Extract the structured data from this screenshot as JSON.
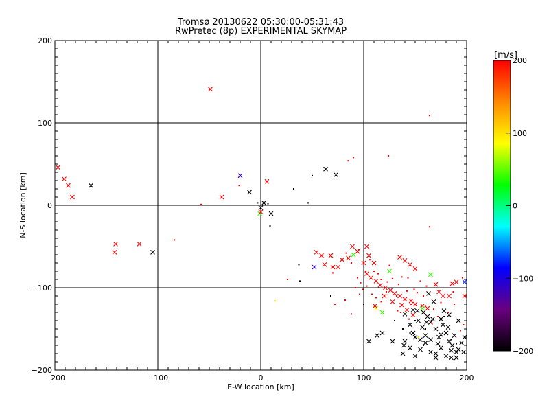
{
  "chart_data": {
    "type": "scatter",
    "title": "Tromsø 20130622 05:30:00-05:31:43",
    "subtitle": "RwPretec (8p) EXPERIMENTAL SKYMAP",
    "xlabel": "E-W location [km]",
    "ylabel": "N-S location [km]",
    "xlim": [
      -200,
      200
    ],
    "ylim": [
      -200,
      200
    ],
    "xticks": [
      -200,
      -100,
      0,
      100,
      200
    ],
    "yticks": [
      -200,
      -100,
      0,
      100,
      200
    ],
    "grid": true,
    "colorbar": {
      "label": "[m/s]",
      "min": -200,
      "max": 200,
      "ticks": [
        200,
        100,
        0,
        -100,
        -200
      ],
      "colors": [
        "#000000",
        "#6a0080",
        "#0000ff",
        "#00ffff",
        "#00ff00",
        "#ffff00",
        "#ff8800",
        "#ff0000"
      ]
    },
    "crosses": [
      [
        -197,
        46,
        200
      ],
      [
        -191,
        32,
        200
      ],
      [
        -187,
        24,
        200
      ],
      [
        -183,
        10,
        200
      ],
      [
        -165,
        24,
        -200
      ],
      [
        -141,
        -47,
        200
      ],
      [
        -142,
        -57,
        200
      ],
      [
        -118,
        -47,
        200
      ],
      [
        -105,
        -57,
        -200
      ],
      [
        -49,
        141,
        200
      ],
      [
        -38,
        10,
        200
      ],
      [
        -20,
        36,
        -110
      ],
      [
        -11,
        16,
        -200
      ],
      [
        6,
        29,
        200
      ],
      [
        3,
        3,
        -200
      ],
      [
        0,
        -3,
        -200
      ],
      [
        -1,
        -10,
        40
      ],
      [
        0,
        -8,
        200
      ],
      [
        10,
        -10,
        -200
      ],
      [
        63,
        44,
        -200
      ],
      [
        73,
        37,
        -200
      ],
      [
        54,
        -57,
        200
      ],
      [
        59,
        -61,
        200
      ],
      [
        52,
        -75,
        -110
      ],
      [
        62,
        -72,
        200
      ],
      [
        68,
        -61,
        200
      ],
      [
        70,
        -75,
        200
      ],
      [
        75,
        -75,
        200
      ],
      [
        79,
        -66,
        200
      ],
      [
        85,
        -64,
        200
      ],
      [
        89,
        -50,
        200
      ],
      [
        94,
        -56,
        200
      ],
      [
        103,
        -50,
        200
      ],
      [
        105,
        -61,
        200
      ],
      [
        90,
        -60,
        40
      ],
      [
        100,
        -70,
        200
      ],
      [
        110,
        -70,
        200
      ],
      [
        103,
        -83,
        200
      ],
      [
        107,
        -88,
        200
      ],
      [
        112,
        -92,
        200
      ],
      [
        116,
        -97,
        200
      ],
      [
        121,
        -100,
        200
      ],
      [
        126,
        -103,
        200
      ],
      [
        130,
        -107,
        200
      ],
      [
        135,
        -110,
        200
      ],
      [
        140,
        -114,
        200
      ],
      [
        146,
        -116,
        200
      ],
      [
        150,
        -120,
        200
      ],
      [
        157,
        -122,
        200
      ],
      [
        162,
        -125,
        200
      ],
      [
        170,
        -96,
        200
      ],
      [
        173,
        -105,
        200
      ],
      [
        177,
        -110,
        200
      ],
      [
        186,
        -95,
        200
      ],
      [
        190,
        -93,
        200
      ],
      [
        163,
        -107,
        -200
      ],
      [
        168,
        -117,
        -200
      ],
      [
        183,
        -110,
        200
      ],
      [
        120,
        -110,
        200
      ],
      [
        128,
        -117,
        200
      ],
      [
        137,
        -121,
        200
      ],
      [
        142,
        -127,
        200
      ],
      [
        148,
        -133,
        200
      ],
      [
        125,
        -80,
        40
      ],
      [
        165,
        -84,
        40
      ],
      [
        135,
        -63,
        200
      ],
      [
        140,
        -67,
        200
      ],
      [
        145,
        -72,
        200
      ],
      [
        150,
        -77,
        200
      ],
      [
        112,
        -125,
        100
      ],
      [
        111,
        -122,
        200
      ],
      [
        118,
        -130,
        40
      ],
      [
        198,
        -110,
        200
      ],
      [
        198,
        -93,
        -80
      ],
      [
        145,
        -145,
        -200
      ],
      [
        148,
        -155,
        -200
      ],
      [
        153,
        -140,
        -200
      ],
      [
        157,
        -148,
        -200
      ],
      [
        162,
        -135,
        -200
      ],
      [
        165,
        -142,
        -200
      ],
      [
        170,
        -150,
        -200
      ],
      [
        173,
        -160,
        -200
      ],
      [
        177,
        -145,
        -200
      ],
      [
        180,
        -155,
        -200
      ],
      [
        183,
        -165,
        -200
      ],
      [
        186,
        -170,
        -200
      ],
      [
        190,
        -178,
        -200
      ],
      [
        195,
        -167,
        -200
      ],
      [
        198,
        -160,
        -200
      ],
      [
        140,
        -165,
        -200
      ],
      [
        145,
        -173,
        -200
      ],
      [
        150,
        -183,
        -200
      ],
      [
        155,
        -175,
        -200
      ],
      [
        160,
        -167,
        -200
      ],
      [
        165,
        -178,
        -200
      ],
      [
        170,
        -180,
        -200
      ],
      [
        175,
        -173,
        -200
      ],
      [
        180,
        -183,
        -200
      ],
      [
        185,
        -176,
        -200
      ],
      [
        190,
        -185,
        -200
      ],
      [
        197,
        -178,
        -200
      ],
      [
        140,
        -132,
        -200
      ],
      [
        152,
        -128,
        -200
      ],
      [
        158,
        -130,
        -200
      ],
      [
        167,
        -138,
        -200
      ],
      [
        175,
        -138,
        -200
      ],
      [
        178,
        -128,
        -200
      ],
      [
        183,
        -133,
        -200
      ],
      [
        192,
        -140,
        -200
      ],
      [
        105,
        -165,
        -200
      ],
      [
        113,
        -158,
        -200
      ],
      [
        118,
        -155,
        -200
      ],
      [
        128,
        -165,
        -200
      ],
      [
        138,
        -180,
        -200
      ],
      [
        160,
        -158,
        -200
      ],
      [
        165,
        -163,
        -200
      ],
      [
        172,
        -168,
        -200
      ],
      [
        182,
        -148,
        -200
      ],
      [
        188,
        -158,
        -200
      ],
      [
        155,
        -163,
        -200
      ],
      [
        150,
        -160,
        -200
      ],
      [
        148,
        -127,
        -200
      ],
      [
        161,
        -142,
        -200
      ],
      [
        139,
        -170,
        -200
      ],
      [
        175,
        -157,
        -200
      ],
      [
        185,
        -185,
        -200
      ],
      [
        157,
        -125,
        40
      ],
      [
        192,
        -175,
        -200
      ],
      [
        170,
        -185,
        -200
      ]
    ],
    "dots": [
      [
        -58,
        1,
        200
      ],
      [
        -84,
        -42,
        200
      ],
      [
        -21,
        24,
        200
      ],
      [
        -3,
        3,
        -200
      ],
      [
        7,
        2,
        -200
      ],
      [
        9,
        -25,
        -200
      ],
      [
        14,
        -116,
        100
      ],
      [
        32,
        20,
        -200
      ],
      [
        46,
        3,
        -200
      ],
      [
        50,
        36,
        -200
      ],
      [
        37,
        -72,
        -200
      ],
      [
        38,
        -92,
        -200
      ],
      [
        26,
        -90,
        200
      ],
      [
        85,
        54,
        200
      ],
      [
        90,
        58,
        200
      ],
      [
        124,
        60,
        200
      ],
      [
        164,
        109,
        200
      ],
      [
        164,
        -26,
        200
      ],
      [
        68,
        -110,
        -200
      ],
      [
        72,
        -120,
        200
      ],
      [
        82,
        -115,
        200
      ],
      [
        88,
        -132,
        200
      ],
      [
        96,
        -108,
        200
      ],
      [
        100,
        -120,
        -200
      ],
      [
        130,
        -140,
        -200
      ],
      [
        138,
        -150,
        -200
      ],
      [
        133,
        -128,
        200
      ],
      [
        108,
        -108,
        200
      ],
      [
        112,
        -112,
        200
      ],
      [
        117,
        -117,
        200
      ],
      [
        132,
        -110,
        200
      ],
      [
        136,
        -130,
        200
      ],
      [
        144,
        -138,
        200
      ],
      [
        152,
        -106,
        200
      ],
      [
        158,
        -110,
        200
      ],
      [
        168,
        -126,
        200
      ],
      [
        182,
        -130,
        200
      ],
      [
        194,
        -152,
        200
      ],
      [
        196,
        -88,
        200
      ],
      [
        188,
        -120,
        200
      ],
      [
        172,
        -135,
        200
      ],
      [
        102,
        -80,
        200
      ],
      [
        88,
        -70,
        200
      ],
      [
        94,
        -88,
        200
      ],
      [
        97,
        -94,
        200
      ],
      [
        103,
        -98,
        200
      ],
      [
        92,
        -100,
        200
      ],
      [
        117,
        -90,
        200
      ],
      [
        123,
        -93,
        200
      ],
      [
        128,
        -89,
        200
      ],
      [
        134,
        -96,
        200
      ],
      [
        142,
        -104,
        200
      ],
      [
        149,
        -102,
        200
      ],
      [
        155,
        -92,
        200
      ],
      [
        161,
        -98,
        200
      ],
      [
        125,
        -73,
        200
      ],
      [
        110,
        -80,
        200
      ],
      [
        83,
        -58,
        200
      ],
      [
        150,
        -140,
        -200
      ],
      [
        158,
        -170,
        -200
      ],
      [
        185,
        -163,
        -200
      ],
      [
        190,
        -168,
        -200
      ],
      [
        145,
        -155,
        -200
      ],
      [
        178,
        -135,
        -200
      ],
      [
        166,
        -143,
        200
      ],
      [
        153,
        -160,
        100
      ],
      [
        160,
        -122,
        200
      ],
      [
        114,
        -83,
        200
      ],
      [
        70,
        -82,
        200
      ],
      [
        95,
        -54,
        200
      ],
      [
        106,
        -66,
        200
      ],
      [
        143,
        -88,
        200
      ],
      [
        146,
        -120,
        200
      ],
      [
        175,
        -118,
        200
      ],
      [
        187,
        -105,
        200
      ],
      [
        197,
        -145,
        200
      ],
      [
        137,
        -87,
        200
      ],
      [
        122,
        -105,
        200
      ],
      [
        99,
        -102,
        200
      ],
      [
        160,
        -150,
        -200
      ]
    ]
  }
}
